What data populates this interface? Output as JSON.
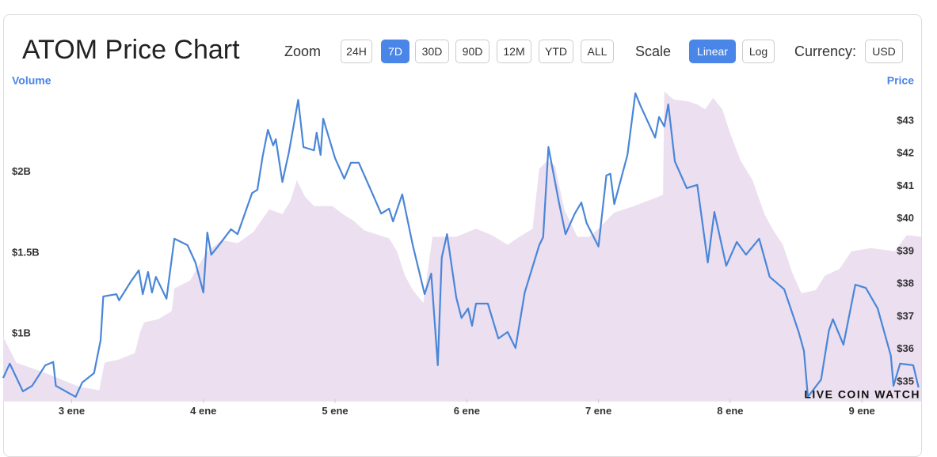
{
  "header": {
    "title": "ATOM Price Chart"
  },
  "controls": {
    "zoom_label": "Zoom",
    "zoom_buttons": [
      {
        "label": "24H",
        "active": false
      },
      {
        "label": "7D",
        "active": true
      },
      {
        "label": "30D",
        "active": false
      },
      {
        "label": "90D",
        "active": false
      },
      {
        "label": "12M",
        "active": false
      },
      {
        "label": "YTD",
        "active": false
      },
      {
        "label": "ALL",
        "active": false
      }
    ],
    "scale_label": "Scale",
    "scale_buttons": [
      {
        "label": "Linear",
        "active": true
      },
      {
        "label": "Log",
        "active": false
      }
    ],
    "currency_label": "Currency:",
    "currency_button": "USD"
  },
  "chart_data": {
    "type": "line",
    "watermark": "LIVE COIN WATCH",
    "xlim": [
      2.48,
      9.45
    ],
    "xticks": [
      {
        "value": 3,
        "label": "3 ene"
      },
      {
        "value": 4,
        "label": "4 ene"
      },
      {
        "value": 5,
        "label": "5 ene"
      },
      {
        "value": 6,
        "label": "6 ene"
      },
      {
        "value": 7,
        "label": "7 ene"
      },
      {
        "value": 8,
        "label": "8 ene"
      },
      {
        "value": 9,
        "label": "9 ene"
      }
    ],
    "ylim": [
      0.58,
      2.6
    ],
    "yticks": [
      {
        "value": 1,
        "label": "$1B"
      },
      {
        "value": 1.5,
        "label": "$1.5B"
      },
      {
        "value": 2,
        "label": "$2B"
      }
    ],
    "y2lim": [
      34.4,
      44.4
    ],
    "y2ticks": [
      {
        "value": 35,
        "label": "$35"
      },
      {
        "value": 36,
        "label": "$36"
      },
      {
        "value": 37,
        "label": "$37"
      },
      {
        "value": 38,
        "label": "$38"
      },
      {
        "value": 39,
        "label": "$39"
      },
      {
        "value": 40,
        "label": "$40"
      },
      {
        "value": 41,
        "label": "$41"
      },
      {
        "value": 42,
        "label": "$42"
      },
      {
        "value": 43,
        "label": "$43"
      }
    ],
    "grid": false,
    "series": [
      {
        "name": "Volume",
        "style": "area",
        "axis": "y",
        "color": "#ebdff0",
        "x": [
          2.48,
          2.58,
          2.82,
          3.06,
          3.21,
          3.25,
          3.36,
          3.48,
          3.52,
          3.55,
          3.66,
          3.76,
          3.78,
          3.9,
          4.02,
          4.14,
          4.26,
          4.38,
          4.44,
          4.5,
          4.6,
          4.66,
          4.71,
          4.77,
          4.84,
          4.98,
          5.06,
          5.14,
          5.22,
          5.41,
          5.47,
          5.53,
          5.59,
          5.67,
          5.74,
          5.83,
          5.92,
          6.07,
          6.19,
          6.31,
          6.4,
          6.5,
          6.55,
          6.61,
          6.67,
          6.74,
          6.84,
          6.93,
          7.0,
          7.12,
          7.27,
          7.43,
          7.49,
          7.5,
          7.57,
          7.67,
          7.75,
          7.81,
          7.87,
          7.94,
          8.0,
          8.08,
          8.17,
          8.26,
          8.32,
          8.4,
          8.47,
          8.54,
          8.65,
          8.72,
          8.83,
          8.92,
          9.07,
          9.25,
          9.34,
          9.45
        ],
        "values": [
          0.98,
          0.82,
          0.75,
          0.67,
          0.65,
          0.82,
          0.84,
          0.88,
          1.01,
          1.07,
          1.09,
          1.14,
          1.28,
          1.33,
          1.5,
          1.58,
          1.56,
          1.63,
          1.7,
          1.77,
          1.74,
          1.82,
          1.95,
          1.85,
          1.79,
          1.79,
          1.74,
          1.7,
          1.64,
          1.59,
          1.51,
          1.36,
          1.27,
          1.19,
          1.6,
          1.6,
          1.6,
          1.65,
          1.61,
          1.55,
          1.6,
          1.65,
          2.02,
          2.07,
          2.04,
          1.77,
          1.6,
          1.6,
          1.65,
          1.75,
          1.79,
          1.84,
          1.86,
          2.5,
          2.45,
          2.44,
          2.42,
          2.39,
          2.46,
          2.39,
          2.24,
          2.07,
          1.95,
          1.74,
          1.65,
          1.55,
          1.38,
          1.25,
          1.27,
          1.36,
          1.4,
          1.51,
          1.53,
          1.51,
          1.61,
          1.6
        ]
      },
      {
        "name": "Price",
        "style": "line",
        "axis": "y2",
        "color": "#4a86d8",
        "x": [
          2.48,
          2.53,
          2.63,
          2.7,
          2.8,
          2.86,
          2.88,
          3.03,
          3.08,
          3.17,
          3.22,
          3.24,
          3.34,
          3.36,
          3.45,
          3.51,
          3.54,
          3.58,
          3.61,
          3.64,
          3.72,
          3.78,
          3.88,
          3.94,
          4.0,
          4.03,
          4.06,
          4.11,
          4.21,
          4.26,
          4.37,
          4.41,
          4.45,
          4.49,
          4.53,
          4.55,
          4.6,
          4.65,
          4.72,
          4.76,
          4.84,
          4.86,
          4.89,
          4.91,
          5.0,
          5.07,
          5.12,
          5.18,
          5.26,
          5.35,
          5.41,
          5.44,
          5.51,
          5.59,
          5.68,
          5.73,
          5.78,
          5.81,
          5.85,
          5.92,
          5.96,
          6.01,
          6.04,
          6.07,
          6.16,
          6.24,
          6.31,
          6.37,
          6.44,
          6.55,
          6.58,
          6.62,
          6.7,
          6.75,
          6.82,
          6.87,
          6.91,
          7.0,
          7.06,
          7.09,
          7.12,
          7.22,
          7.28,
          7.32,
          7.43,
          7.46,
          7.5,
          7.53,
          7.58,
          7.67,
          7.75,
          7.83,
          7.88,
          7.97,
          8.05,
          8.12,
          8.22,
          8.3,
          8.41,
          8.52,
          8.56,
          8.59,
          8.69,
          8.75,
          8.78,
          8.86,
          8.95,
          9.03,
          9.12,
          9.22,
          9.24,
          9.29,
          9.39,
          9.43
        ],
        "values": [
          35.12,
          35.56,
          34.71,
          34.88,
          35.51,
          35.61,
          34.88,
          34.54,
          34.98,
          35.27,
          36.28,
          37.62,
          37.69,
          37.5,
          38.08,
          38.42,
          37.69,
          38.37,
          37.74,
          38.22,
          37.55,
          39.39,
          39.19,
          38.66,
          37.74,
          39.58,
          38.9,
          39.15,
          39.68,
          39.53,
          40.79,
          40.89,
          41.91,
          42.73,
          42.25,
          42.44,
          41.13,
          42.05,
          43.65,
          42.2,
          42.1,
          42.64,
          41.96,
          43.07,
          41.86,
          41.23,
          41.72,
          41.72,
          40.99,
          40.16,
          40.31,
          39.92,
          40.75,
          39.19,
          37.69,
          38.32,
          35.51,
          38.81,
          39.53,
          37.59,
          36.96,
          37.25,
          36.72,
          37.4,
          37.4,
          36.33,
          36.53,
          36.04,
          37.74,
          39.19,
          39.44,
          42.2,
          40.5,
          39.53,
          40.16,
          40.5,
          39.87,
          39.15,
          41.33,
          41.38,
          40.45,
          41.96,
          43.85,
          43.46,
          42.49,
          43.12,
          42.83,
          43.51,
          41.76,
          40.94,
          41.04,
          38.66,
          40.21,
          38.56,
          39.29,
          38.9,
          39.39,
          38.22,
          37.84,
          36.53,
          35.95,
          34.54,
          35.07,
          36.58,
          36.92,
          36.14,
          37.98,
          37.88,
          37.25,
          35.8,
          34.88,
          35.56,
          35.51,
          34.83
        ]
      }
    ]
  }
}
